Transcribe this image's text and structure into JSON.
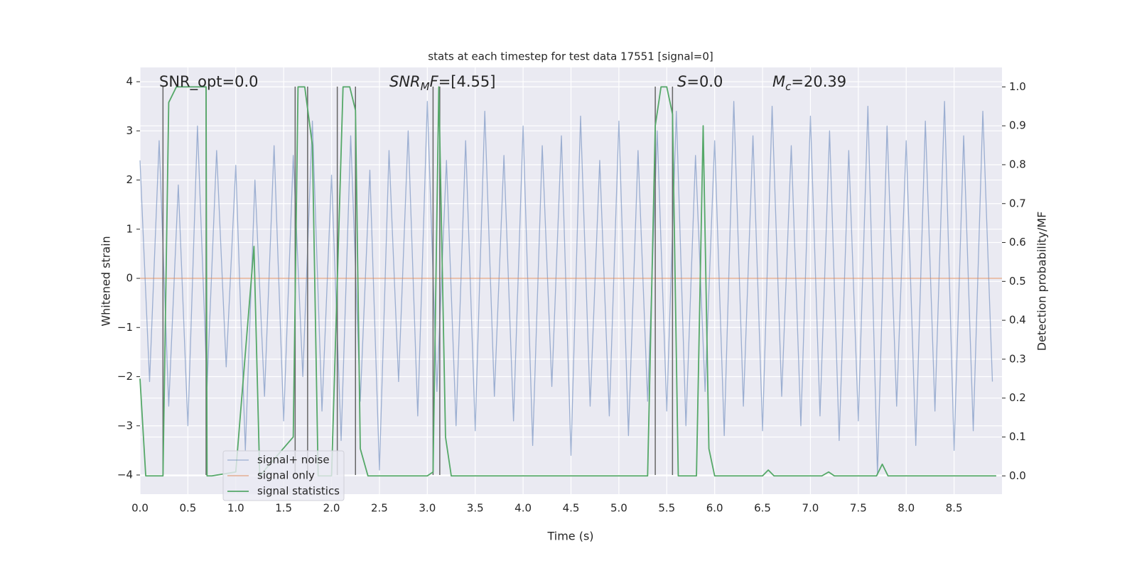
{
  "chart_data": {
    "type": "line",
    "title": "stats at each timestep for test data 17551 [signal=0]",
    "xlabel": "Time (s)",
    "ylabel": "Whitened strain",
    "y2label": "Detection probability/MF",
    "xlim": [
      0,
      9.0
    ],
    "ylim": [
      -4.39,
      4.29
    ],
    "y2lim": [
      -0.047,
      1.05
    ],
    "xticks": [
      {
        "value": 0,
        "label": "0.0"
      },
      {
        "value": 0.5,
        "label": "0.5"
      },
      {
        "value": 1,
        "label": "1.0"
      },
      {
        "value": 1.5,
        "label": "1.5"
      },
      {
        "value": 2,
        "label": "2.0"
      },
      {
        "value": 2.5,
        "label": "2.5"
      },
      {
        "value": 3,
        "label": "3.0"
      },
      {
        "value": 3.5,
        "label": "3.5"
      },
      {
        "value": 4,
        "label": "4.0"
      },
      {
        "value": 4.5,
        "label": "4.5"
      },
      {
        "value": 5,
        "label": "5.0"
      },
      {
        "value": 5.5,
        "label": "5.5"
      },
      {
        "value": 6,
        "label": "6.0"
      },
      {
        "value": 6.5,
        "label": "6.5"
      },
      {
        "value": 7,
        "label": "7.0"
      },
      {
        "value": 7.5,
        "label": "7.5"
      },
      {
        "value": 8,
        "label": "8.0"
      },
      {
        "value": 8.5,
        "label": "8.5"
      }
    ],
    "yticks": [
      {
        "value": -4,
        "label": "−4"
      },
      {
        "value": -3,
        "label": "−3"
      },
      {
        "value": -2,
        "label": "−2"
      },
      {
        "value": -1,
        "label": "−1"
      },
      0,
      1,
      2,
      3,
      4
    ],
    "y2ticks": [
      {
        "value": 0,
        "label": "0.0"
      },
      {
        "value": 0.1,
        "label": "0.1"
      },
      {
        "value": 0.2,
        "label": "0.2"
      },
      {
        "value": 0.3,
        "label": "0.3"
      },
      {
        "value": 0.4,
        "label": "0.4"
      },
      {
        "value": 0.5,
        "label": "0.5"
      },
      {
        "value": 0.6,
        "label": "0.6"
      },
      {
        "value": 0.7,
        "label": "0.7"
      },
      {
        "value": 0.8,
        "label": "0.8"
      },
      {
        "value": 0.9,
        "label": "0.9"
      },
      {
        "value": 1,
        "label": "1.0"
      }
    ],
    "grid": true,
    "legend": "lower left",
    "annotations": [
      {
        "base": "SNR_opt=0.0"
      },
      {
        "base": "SNR",
        "sub": "M",
        "rest": "F=[4.55]"
      },
      {
        "base": "S",
        "rest": "=0.0"
      },
      {
        "base": "M",
        "sub": "c",
        "rest": "=20.39"
      }
    ],
    "vlines": [
      0.24,
      0.69,
      1.62,
      1.75,
      2.06,
      2.25,
      3.06,
      3.13,
      5.38,
      5.56
    ],
    "vline_range": [
      -4,
      3.9
    ],
    "vline_color": "#666666",
    "series": [
      {
        "name": "signal+ noise",
        "color": "#4c72b0",
        "x": [
          0.0,
          0.1,
          0.2,
          0.3,
          0.4,
          0.5,
          0.6,
          0.7,
          0.8,
          0.9,
          1.0,
          1.1,
          1.2,
          1.3,
          1.4,
          1.5,
          1.6,
          1.7,
          1.8,
          1.9,
          2.0,
          2.1,
          2.2,
          2.3,
          2.4,
          2.5,
          2.6,
          2.7,
          2.8,
          2.9,
          3.0,
          3.1,
          3.2,
          3.3,
          3.4,
          3.5,
          3.6,
          3.7,
          3.8,
          3.9,
          4.0,
          4.1,
          4.2,
          4.3,
          4.4,
          4.5,
          4.6,
          4.7,
          4.8,
          4.9,
          5.0,
          5.1,
          5.2,
          5.3,
          5.4,
          5.5,
          5.6,
          5.7,
          5.8,
          5.9,
          6.0,
          6.1,
          6.2,
          6.3,
          6.4,
          6.5,
          6.6,
          6.7,
          6.8,
          6.9,
          7.0,
          7.1,
          7.2,
          7.3,
          7.4,
          7.5,
          7.6,
          7.7,
          7.8,
          7.9,
          8.0,
          8.1,
          8.2,
          8.3,
          8.4,
          8.5,
          8.6,
          8.7,
          8.8,
          8.9
        ],
        "values": [
          2.4,
          -2.1,
          2.8,
          -2.6,
          1.9,
          -3.0,
          3.1,
          -2.2,
          2.6,
          -1.8,
          2.3,
          -3.5,
          2.0,
          -2.4,
          2.7,
          -2.9,
          2.5,
          -2.0,
          3.2,
          -2.7,
          2.1,
          -3.3,
          2.9,
          -2.5,
          2.2,
          -3.9,
          2.6,
          -2.1,
          3.0,
          -2.8,
          3.6,
          -2.3,
          2.4,
          -3.0,
          2.8,
          -3.1,
          3.4,
          -2.4,
          2.5,
          -2.9,
          3.1,
          -3.4,
          2.7,
          -2.2,
          2.9,
          -3.6,
          3.3,
          -2.6,
          2.4,
          -2.8,
          3.2,
          -3.2,
          2.6,
          -2.5,
          3.0,
          -2.7,
          3.4,
          -3.0,
          2.5,
          -2.3,
          2.8,
          -3.2,
          3.6,
          -2.6,
          2.9,
          -3.1,
          3.5,
          -2.4,
          2.7,
          -3.0,
          3.3,
          -2.8,
          3.0,
          -3.3,
          2.6,
          -2.9,
          3.5,
          -4.0,
          3.1,
          -2.6,
          2.8,
          -3.4,
          3.2,
          -2.7,
          3.6,
          -3.5,
          2.9,
          -3.1,
          3.4,
          -2.1
        ]
      },
      {
        "name": "signal only",
        "color": "#dd8452",
        "x": [
          0,
          9.0
        ],
        "values": [
          0,
          0
        ]
      },
      {
        "name": "signal statistics",
        "color": "#55a868",
        "axis": "y2",
        "x": [
          0.0,
          0.06,
          0.24,
          0.3,
          0.38,
          0.69,
          0.7,
          0.75,
          1.0,
          1.19,
          1.25,
          1.6,
          1.65,
          1.72,
          1.8,
          1.86,
          2.0,
          2.06,
          2.12,
          2.19,
          2.25,
          2.3,
          2.38,
          3.0,
          3.06,
          3.12,
          3.19,
          3.25,
          5.3,
          5.38,
          5.44,
          5.5,
          5.56,
          5.62,
          5.81,
          5.88,
          5.94,
          6.0,
          6.5,
          6.56,
          6.62,
          7.12,
          7.19,
          7.25,
          7.69,
          7.75,
          7.81,
          8.94
        ],
        "values": [
          0.25,
          0.0,
          0.0,
          0.96,
          1.0,
          1.0,
          0.0,
          0.0,
          0.01,
          0.59,
          0.0,
          0.1,
          1.0,
          1.0,
          0.85,
          0.0,
          0.0,
          0.5,
          1.0,
          1.0,
          0.94,
          0.07,
          0.0,
          0.0,
          0.01,
          1.0,
          0.1,
          0.0,
          0.0,
          0.9,
          1.0,
          1.0,
          0.93,
          0.0,
          0.0,
          0.9,
          0.07,
          0.0,
          0.0,
          0.015,
          0.0,
          0.0,
          0.01,
          0.0,
          0.0,
          0.03,
          0.0,
          0.0
        ]
      }
    ]
  }
}
